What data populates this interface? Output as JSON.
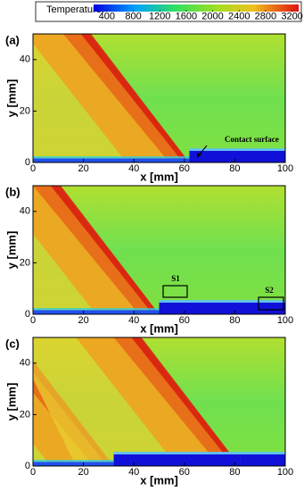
{
  "colorbar": {
    "label": "Temperature:",
    "lim": [
      200,
      3300
    ],
    "ticks": [
      400,
      800,
      1200,
      1600,
      2000,
      2400,
      2800,
      3200
    ]
  },
  "chart_data": [
    {
      "type": "contour",
      "panel_label": "(a)",
      "xlabel": "x [mm]",
      "ylabel": "y [mm]",
      "xlim": [
        0,
        100
      ],
      "ylim": [
        0,
        50
      ],
      "xticks": [
        0,
        20,
        40,
        60,
        80,
        100
      ],
      "yticks": [
        0,
        20,
        40
      ],
      "annotations": [
        "Contact surface"
      ]
    },
    {
      "type": "contour",
      "panel_label": "(b)",
      "xlabel": "x [mm]",
      "ylabel": "y [mm]",
      "xlim": [
        0,
        100
      ],
      "ylim": [
        0,
        50
      ],
      "xticks": [
        0,
        20,
        40,
        60,
        80,
        100
      ],
      "yticks": [
        0,
        20,
        40
      ],
      "annotations": [
        "S1",
        "S2"
      ]
    },
    {
      "type": "contour",
      "panel_label": "(c)",
      "xlabel": "x [mm]",
      "ylabel": "y [mm]",
      "xlim": [
        0,
        100
      ],
      "ylim": [
        0,
        50
      ],
      "xticks": [
        0,
        20,
        40,
        60,
        80,
        100
      ],
      "yticks": [
        0,
        20,
        40
      ],
      "annotations": []
    }
  ]
}
